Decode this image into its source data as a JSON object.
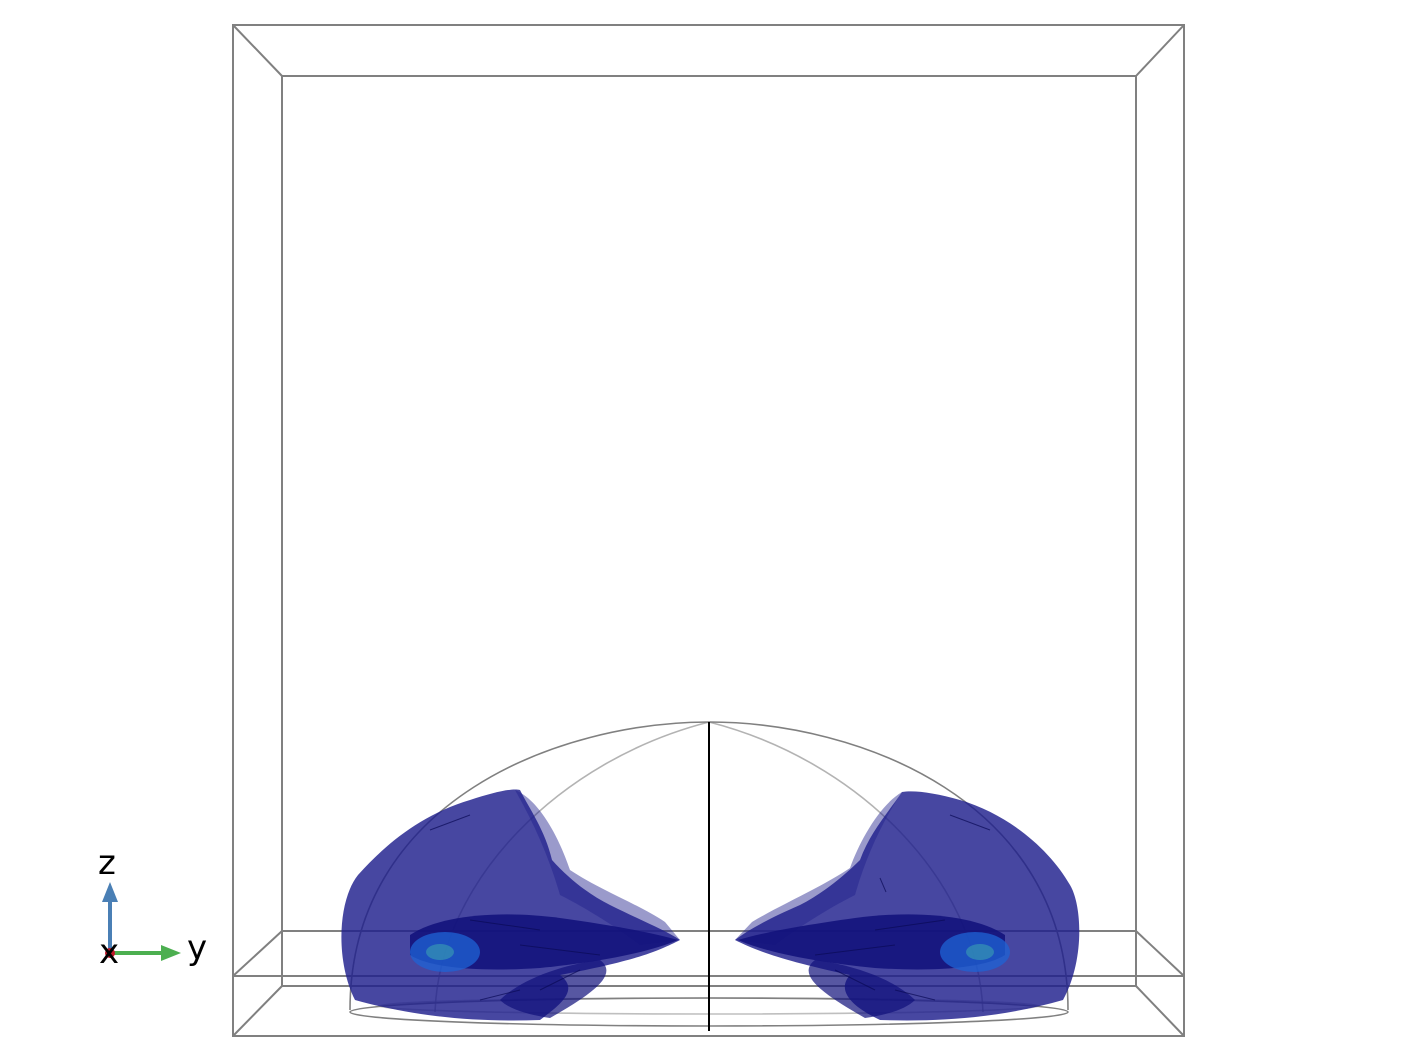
{
  "scene": {
    "background_color": "#ffffff",
    "box_color": "#808080",
    "dome_color": "#808080",
    "center_line_color": "#000000",
    "surface_color": "#1f1f8c",
    "surface_dark_color": "#10107a",
    "core_color": "#1e63d6",
    "core_accent_color": "#3aa0b0"
  },
  "axes": {
    "z_label": "z",
    "y_label": "y",
    "x_label": "x",
    "z_color": "#4a7fb5",
    "y_color": "#4caf50",
    "x_color": "#c0182a"
  }
}
